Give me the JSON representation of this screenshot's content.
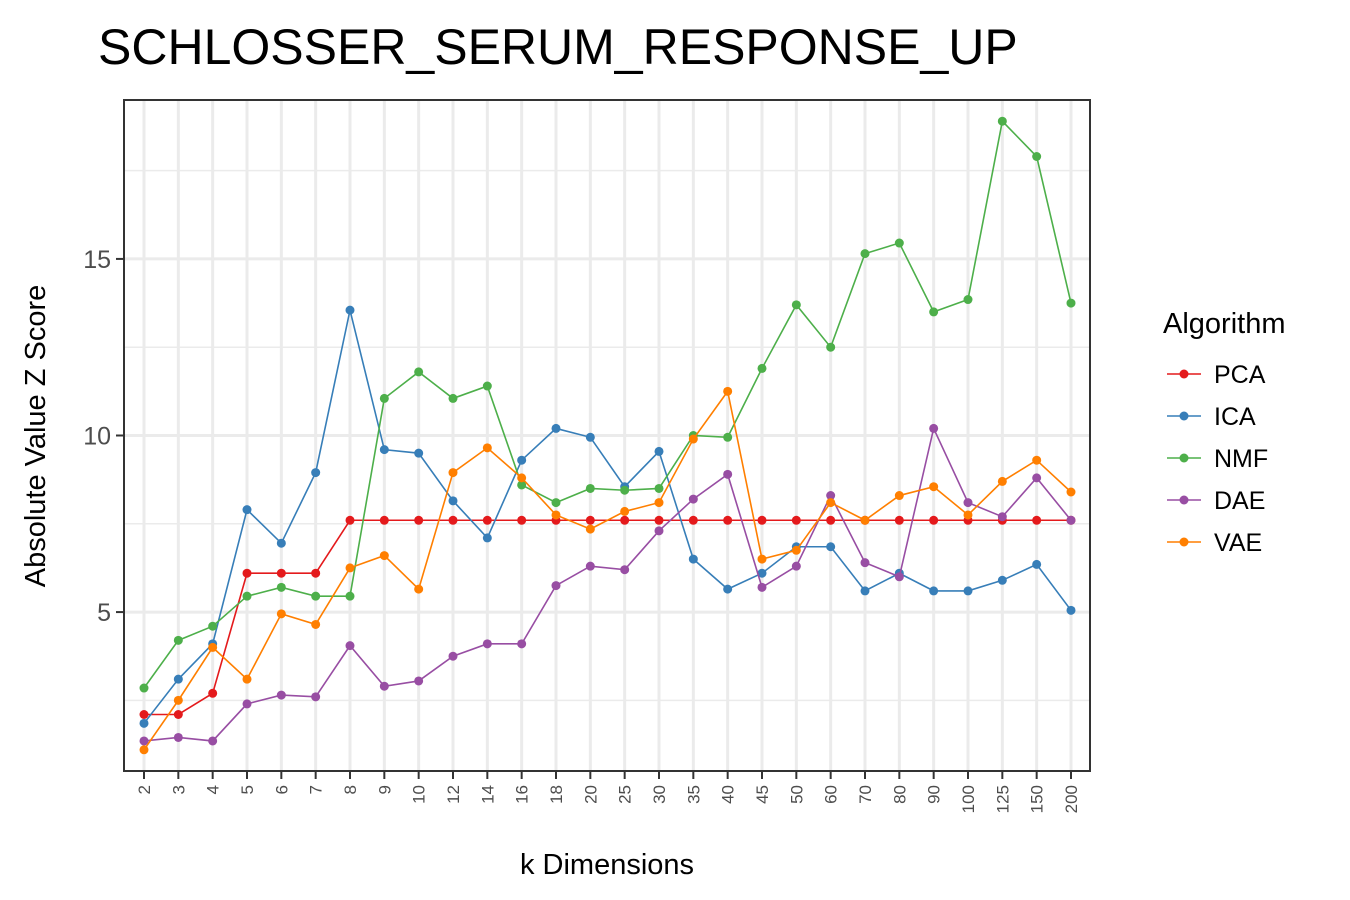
{
  "chart_data": {
    "type": "line",
    "title": "SCHLOSSER_SERUM_RESPONSE_UP",
    "xlabel": "k Dimensions",
    "ylabel": "Absolute Value Z Score",
    "categories": [
      "2",
      "3",
      "4",
      "5",
      "6",
      "7",
      "8",
      "9",
      "10",
      "12",
      "14",
      "16",
      "18",
      "20",
      "25",
      "30",
      "35",
      "40",
      "45",
      "50",
      "60",
      "70",
      "80",
      "90",
      "100",
      "125",
      "150",
      "200"
    ],
    "ylim": [
      0.5,
      19.5
    ],
    "yticks": [
      5,
      10,
      15
    ],
    "grid": true,
    "legend_title": "Algorithm",
    "legend_position": "right",
    "series": [
      {
        "name": "PCA",
        "color": "#e41a1c",
        "values": [
          2.1,
          2.1,
          2.7,
          6.1,
          6.1,
          6.1,
          7.6,
          7.6,
          7.6,
          7.6,
          7.6,
          7.6,
          7.6,
          7.6,
          7.6,
          7.6,
          7.6,
          7.6,
          7.6,
          7.6,
          7.6,
          7.6,
          7.6,
          7.6,
          7.6,
          7.6,
          7.6,
          7.6
        ]
      },
      {
        "name": "ICA",
        "color": "#377eb8",
        "values": [
          1.85,
          3.1,
          4.1,
          7.9,
          6.95,
          8.95,
          13.55,
          9.6,
          9.5,
          8.15,
          7.1,
          9.3,
          10.2,
          9.95,
          8.55,
          9.55,
          6.5,
          5.65,
          6.1,
          6.85,
          6.85,
          5.6,
          6.1,
          5.6,
          5.6,
          5.9,
          6.35,
          5.05
        ]
      },
      {
        "name": "NMF",
        "color": "#4daf4a",
        "values": [
          2.85,
          4.2,
          4.6,
          5.45,
          5.7,
          5.45,
          5.45,
          11.05,
          11.8,
          11.05,
          11.4,
          8.6,
          8.1,
          8.5,
          8.45,
          8.5,
          10.0,
          9.95,
          11.9,
          13.7,
          12.5,
          15.15,
          15.45,
          13.5,
          13.85,
          18.9,
          17.9,
          13.75
        ]
      },
      {
        "name": "DAE",
        "color": "#984ea3",
        "values": [
          1.35,
          1.45,
          1.35,
          2.4,
          2.65,
          2.6,
          4.05,
          2.9,
          3.05,
          3.75,
          4.1,
          4.1,
          5.75,
          6.3,
          6.2,
          7.3,
          8.2,
          8.9,
          5.7,
          6.3,
          8.3,
          6.4,
          6.0,
          10.2,
          8.1,
          7.7,
          8.8,
          7.6
        ]
      },
      {
        "name": "VAE",
        "color": "#ff7f00",
        "values": [
          1.1,
          2.5,
          4.0,
          3.1,
          4.95,
          4.65,
          6.25,
          6.6,
          5.65,
          8.95,
          9.65,
          8.8,
          7.75,
          7.35,
          7.85,
          8.1,
          9.9,
          11.25,
          6.5,
          6.75,
          8.1,
          7.6,
          8.3,
          8.55,
          7.75,
          8.7,
          9.3,
          8.4
        ]
      }
    ]
  }
}
